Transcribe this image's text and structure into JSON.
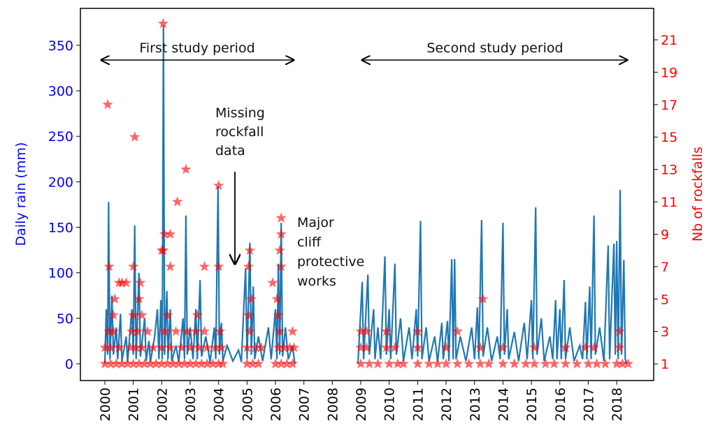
{
  "chart_data": {
    "type": "line-scatter",
    "ylabel": "Daily rain (mm)",
    "y2label": "Nb of rockfalls",
    "ylabel_color": "blue",
    "y2label_color": "red",
    "xlim": [
      1999.14,
      2019.3
    ],
    "ylim": [
      -18.4,
      390.6
    ],
    "y2lim": [
      -0.03,
      22.94
    ],
    "xticks": [
      2000,
      2001,
      2002,
      2003,
      2004,
      2005,
      2006,
      2007,
      2008,
      2009,
      2010,
      2011,
      2012,
      2013,
      2014,
      2015,
      2016,
      2017,
      2018
    ],
    "yticks": [
      0,
      50,
      100,
      150,
      200,
      250,
      300,
      350
    ],
    "y2ticks": [
      1,
      3,
      5,
      7,
      9,
      11,
      13,
      15,
      17,
      19,
      21
    ],
    "annotations": [
      [
        "First study period"
      ],
      [
        "Second study period"
      ],
      [
        "Missing",
        "rockfall",
        "data"
      ],
      [
        "Major",
        "cliff",
        "protective",
        "works"
      ]
    ],
    "series": [
      {
        "color": "#1f77b4",
        "x": [
          2000.0,
          2000.05,
          2000.1,
          2000.13,
          2000.18,
          2000.25,
          2000.3,
          2000.4,
          2000.45,
          2000.55,
          2000.6,
          2000.75,
          2000.8,
          2000.95,
          2001.0,
          2001.05,
          2001.1,
          2001.2,
          2001.25,
          2001.4,
          2001.45,
          2001.55,
          2001.6,
          2001.75,
          2001.85,
          2001.9,
          2001.97,
          2002.02,
          2002.06,
          2002.1,
          2002.18,
          2002.22,
          2002.3,
          2002.35,
          2002.5,
          2002.6,
          2002.75,
          2002.8,
          2002.85,
          2002.9,
          2003.0,
          2003.1,
          2003.2,
          2003.25,
          2003.35,
          2003.4,
          2003.55,
          2003.7,
          2003.85,
          2003.9,
          2003.98,
          2004.03,
          2004.1,
          2004.15,
          2004.3,
          2004.5,
          2004.7,
          2004.8,
          2004.95,
          2005.0,
          2005.1,
          2005.15,
          2005.22,
          2005.27,
          2005.4,
          2005.55,
          2005.75,
          2005.85,
          2006.0,
          2006.05,
          2006.1,
          2006.15,
          2006.2,
          2006.25,
          2006.35,
          2006.45,
          2006.6,
          2006.68,
          2007.8,
          2008.9,
          2009.05,
          2009.1,
          2009.25,
          2009.3,
          2009.45,
          2009.5,
          2009.6,
          2009.7,
          2009.85,
          2009.9,
          2010.0,
          2010.05,
          2010.2,
          2010.25,
          2010.4,
          2010.5,
          2010.7,
          2010.8,
          2010.95,
          2011.0,
          2011.1,
          2011.15,
          2011.3,
          2011.4,
          2011.6,
          2011.7,
          2011.85,
          2011.9,
          2012.05,
          2012.1,
          2012.2,
          2012.25,
          2012.3,
          2012.35,
          2012.5,
          2012.7,
          2012.9,
          2013.0,
          2013.1,
          2013.15,
          2013.25,
          2013.3,
          2013.45,
          2013.6,
          2013.8,
          2013.9,
          2014.0,
          2014.05,
          2014.15,
          2014.2,
          2014.4,
          2014.55,
          2014.75,
          2014.85,
          2015.0,
          2015.05,
          2015.15,
          2015.2,
          2015.35,
          2015.45,
          2015.65,
          2015.75,
          2015.85,
          2015.9,
          2016.0,
          2016.05,
          2016.15,
          2016.2,
          2016.35,
          2016.5,
          2016.7,
          2016.8,
          2016.9,
          2016.95,
          2017.05,
          2017.1,
          2017.2,
          2017.25,
          2017.4,
          2017.55,
          2017.7,
          2017.75,
          2017.9,
          2017.95,
          2018.0,
          2018.05,
          2018.12,
          2018.17,
          2018.25,
          2018.3,
          2018.35
        ],
        "values": [
          0,
          60,
          10,
          178,
          5,
          75,
          10,
          40,
          5,
          55,
          3,
          30,
          2,
          60,
          10,
          152,
          5,
          100,
          8,
          50,
          3,
          25,
          2,
          30,
          60,
          5,
          70,
          5,
          372,
          10,
          80,
          5,
          60,
          3,
          20,
          2,
          50,
          5,
          163,
          10,
          40,
          5,
          60,
          5,
          92,
          8,
          30,
          2,
          40,
          5,
          195,
          10,
          45,
          3,
          20,
          3,
          15,
          2,
          105,
          5,
          133,
          10,
          85,
          5,
          30,
          3,
          40,
          5,
          60,
          5,
          110,
          10,
          155,
          8,
          40,
          5,
          20,
          0,
          null,
          0,
          90,
          5,
          98,
          10,
          60,
          5,
          40,
          5,
          118,
          10,
          60,
          5,
          110,
          10,
          50,
          3,
          40,
          5,
          60,
          8,
          157,
          5,
          40,
          3,
          30,
          2,
          45,
          5,
          47,
          3,
          115,
          5,
          115,
          5,
          30,
          3,
          40,
          5,
          62,
          5,
          158,
          8,
          40,
          3,
          30,
          5,
          155,
          10,
          60,
          5,
          35,
          3,
          45,
          5,
          70,
          5,
          172,
          10,
          50,
          3,
          30,
          5,
          70,
          5,
          60,
          5,
          92,
          5,
          40,
          3,
          20,
          5,
          68,
          5,
          85,
          5,
          163,
          10,
          40,
          3,
          130,
          5,
          132,
          10,
          135,
          5,
          191,
          10,
          114,
          5,
          0
        ]
      },
      {
        "color": "red",
        "axis": "y2",
        "marker": "star",
        "x": [
          2000.0,
          2000.2,
          2000.4,
          2000.6,
          2000.8,
          2001.0,
          2001.2,
          2001.4,
          2001.6,
          2001.8,
          2002.0,
          2002.2,
          2002.4,
          2002.6,
          2002.8,
          2003.0,
          2003.2,
          2003.4,
          2003.6,
          2003.8,
          2004.0,
          2004.15,
          2005.0,
          2005.2,
          2005.4,
          2006.0,
          2006.2,
          2006.4,
          2006.6,
          2000.0,
          2000.2,
          2000.5,
          2000.9,
          2001.1,
          2001.3,
          2001.7,
          2002.0,
          2002.3,
          2002.7,
          2003.0,
          2003.3,
          2003.6,
          2003.9,
          2004.1,
          2005.0,
          2005.3,
          2005.5,
          2006.1,
          2006.3,
          2006.5,
          2006.65,
          2000.15,
          2000.3,
          2000.95,
          2001.15,
          2001.5,
          2002.1,
          2002.5,
          2002.9,
          2003.2,
          2003.5,
          2004.05,
          2005.1,
          2006.15,
          2006.6,
          2000.3,
          2001.0,
          2001.3,
          2002.2,
          2003.25,
          2005.05,
          2006.1,
          2000.35,
          2001.2,
          2005.15,
          2006.05,
          2000.5,
          2000.6,
          2000.75,
          2001.25,
          2005.9,
          2000.15,
          2001.0,
          2002.3,
          2003.5,
          2004.0,
          2005.05,
          2006.2,
          2002.0,
          2002.05,
          2005.1,
          2006.15,
          2002.1,
          2002.3,
          2006.2,
          2006.2,
          2002.55,
          2004.0,
          2002.85,
          2001.05,
          2000.1,
          2002.05,
          2009.0,
          2009.3,
          2009.6,
          2010.0,
          2010.3,
          2010.5,
          2011.0,
          2011.4,
          2011.7,
          2012.0,
          2012.4,
          2012.8,
          2013.2,
          2013.5,
          2014.0,
          2014.4,
          2014.8,
          2015.1,
          2015.5,
          2015.8,
          2016.2,
          2016.6,
          2017.0,
          2017.3,
          2017.6,
          2018.0,
          2018.2,
          2018.4,
          2009.0,
          2009.2,
          2009.9,
          2010.2,
          2011.0,
          2012.0,
          2013.2,
          2014.0,
          2015.1,
          2016.2,
          2016.9,
          2017.2,
          2018.1,
          2009.0,
          2009.2,
          2009.9,
          2011.0,
          2012.4,
          2018.1,
          2013.3
        ],
        "values": [
          1,
          1,
          1,
          1,
          1,
          1,
          1,
          1,
          1,
          1,
          1,
          1,
          1,
          1,
          1,
          1,
          1,
          1,
          1,
          1,
          1,
          1,
          1,
          1,
          1,
          1,
          1,
          1,
          1,
          2,
          2,
          2,
          2,
          2,
          2,
          2,
          2,
          2,
          2,
          2,
          2,
          2,
          2,
          2,
          2,
          2,
          2,
          2,
          2,
          2,
          2,
          3,
          3,
          3,
          3,
          3,
          3,
          3,
          3,
          3,
          3,
          3,
          3,
          3,
          3,
          4,
          4,
          4,
          4,
          4,
          4,
          4,
          5,
          5,
          5,
          5,
          6,
          6,
          6,
          6,
          6,
          7,
          7,
          7,
          7,
          7,
          7,
          7,
          8,
          8,
          8,
          8,
          9,
          9,
          9,
          10,
          11,
          12,
          13,
          15,
          17,
          22,
          1,
          1,
          1,
          1,
          1,
          1,
          1,
          1,
          1,
          1,
          1,
          1,
          1,
          1,
          1,
          1,
          1,
          1,
          1,
          1,
          1,
          1,
          1,
          1,
          1,
          1,
          1,
          1,
          2,
          2,
          2,
          2,
          2,
          2,
          2,
          2,
          2,
          2,
          2,
          2,
          2,
          3,
          3,
          3,
          3,
          3,
          3,
          5
        ]
      }
    ]
  }
}
